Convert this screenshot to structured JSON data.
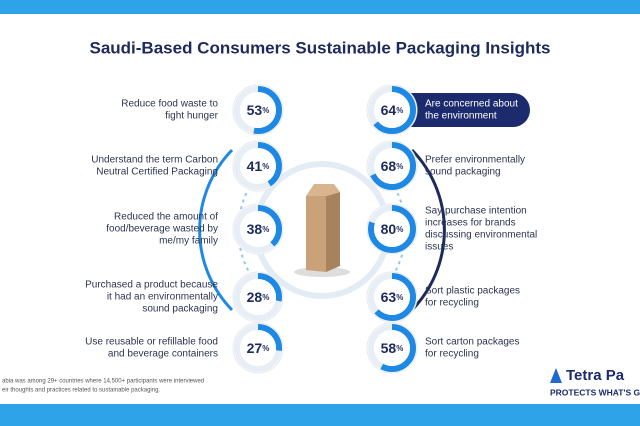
{
  "title": "Saudi-Based Consumers Sustainable Packaging Insights",
  "unit": "%",
  "left_items": [
    {
      "label_lines": [
        "Reduce food waste to",
        "fight hunger"
      ],
      "value": 53
    },
    {
      "label_lines": [
        "Understand the term Carbon",
        "Neutral Certified Packaging"
      ],
      "value": 41
    },
    {
      "label_lines": [
        "Reduced the amount of",
        "food/beverage wasted by",
        "me/my family"
      ],
      "value": 38
    },
    {
      "label_lines": [
        "Purchased a product because",
        "it had an environmentally",
        "sound packaging"
      ],
      "value": 28
    },
    {
      "label_lines": [
        "Use reusable or refillable food",
        "and beverage containers"
      ],
      "value": 27
    }
  ],
  "right_items": [
    {
      "label_lines": [
        "Are concerned about",
        "the environment"
      ],
      "value": 64
    },
    {
      "label_lines": [
        "Prefer environmentally",
        "sound packaging"
      ],
      "value": 68
    },
    {
      "label_lines": [
        "Say purchase intention",
        "increases for brands",
        "discussing environmental",
        "issues"
      ],
      "value": 80
    },
    {
      "label_lines": [
        "Sort plastic packages",
        "for recycling"
      ],
      "value": 63
    },
    {
      "label_lines": [
        "Sort carton packages",
        "for recycling"
      ],
      "value": 58
    }
  ],
  "footnote_lines": [
    "abia was among 29+ countries where 14,500+ participants were interviewed",
    "eir thoughts and practices related to sustainable packaging."
  ],
  "logo": {
    "name": "Tetra Pa",
    "tagline": "PROTECTS WHAT'S GO"
  }
}
